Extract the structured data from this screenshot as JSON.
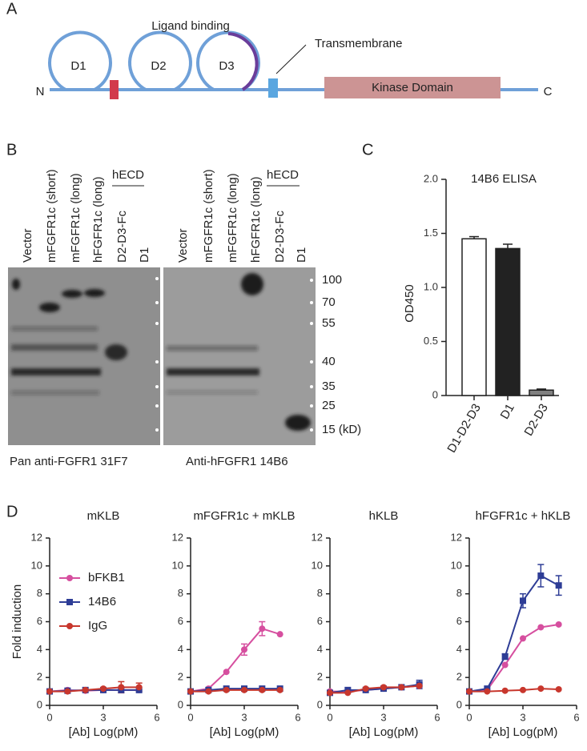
{
  "panel_labels": [
    "A",
    "B",
    "C",
    "D"
  ],
  "panel_a": {
    "domains": [
      "D1",
      "D2",
      "D3"
    ],
    "n_terminus": "N",
    "c_terminus": "C",
    "ligand_label": "Ligand binding",
    "tm_label": "Transmembrane",
    "kinase_label": "Kinase Domain"
  },
  "panel_b": {
    "lanes_left": [
      "Vector",
      "mFGFR1c (short)",
      "mFGFR1c (long)",
      "hFGFR1c (long)",
      "D2-D3-Fc",
      "D1"
    ],
    "lanes_right": [
      "Vector",
      "mFGFR1c (short)",
      "mFGFR1c (long)",
      "hFGFR1c (long)",
      "D2-D3-Fc",
      "D1"
    ],
    "group_label_left": "hECD",
    "group_label_right": "hECD",
    "markers": [
      "100",
      "70",
      "55",
      "40",
      "35",
      "25",
      "15 (kD)"
    ],
    "caption_left": "Pan anti-FGFR1 31F7",
    "caption_right": "Anti-hFGFR1 14B6"
  },
  "chart_data": [
    {
      "type": "bar",
      "title": "14B6 ELISA",
      "ylabel": "OD450",
      "categories": [
        "D1-D2-D3",
        "D1",
        "D2-D3"
      ],
      "values": [
        1.45,
        1.36,
        0.05
      ],
      "errors": [
        0.02,
        0.04,
        0.01
      ],
      "colors": [
        "#ffffff",
        "#222222",
        "#808080"
      ],
      "ylim": [
        0,
        2
      ],
      "yticks": [
        0,
        0.5,
        {
          "value": 1,
          "label": "1.0"
        },
        1.5,
        {
          "value": 2,
          "label": "2.0"
        }
      ]
    },
    {
      "type": "line",
      "title": "mKLB",
      "xlabel": "[Ab] Log(pM)",
      "ylabel": "Fold induction",
      "legend": "upper left",
      "x": [
        0,
        1,
        2,
        3,
        4,
        5
      ],
      "xlim": [
        0,
        6
      ],
      "xticks": [
        0,
        3,
        6
      ],
      "ylim": [
        0,
        12
      ],
      "yticks": [
        0,
        2,
        4,
        6,
        8,
        10,
        12
      ],
      "series": [
        {
          "name": "bFKB1",
          "color": "#d64f9f",
          "marker": "circle",
          "values": [
            1,
            1.1,
            1.05,
            1.1,
            1.1,
            1.1
          ]
        },
        {
          "name": "14B6",
          "color": "#2e3d96",
          "marker": "square",
          "values": [
            1,
            1.05,
            1.1,
            1.1,
            1.1,
            1.1
          ]
        },
        {
          "name": "IgG",
          "color": "#c8372d",
          "marker": "circle",
          "values": [
            1,
            1,
            1.1,
            1.2,
            1.3,
            1.3
          ],
          "errors": [
            0,
            0,
            0,
            0,
            0.4,
            0.3
          ]
        }
      ]
    },
    {
      "type": "line",
      "title": "mFGFR1c + mKLB",
      "xlabel": "[Ab] Log(pM)",
      "x": [
        0,
        1,
        2,
        3,
        4,
        5
      ],
      "xlim": [
        0,
        6
      ],
      "xticks": [
        0,
        3,
        6
      ],
      "ylim": [
        0,
        12
      ],
      "yticks": [
        0,
        2,
        4,
        6,
        8,
        10,
        12
      ],
      "series": [
        {
          "color": "#d64f9f",
          "marker": "circle",
          "values": [
            1,
            1.2,
            2.4,
            4,
            5.5,
            5.1
          ],
          "errors": [
            0,
            0,
            0,
            0.4,
            0.5,
            0
          ]
        },
        {
          "color": "#2e3d96",
          "marker": "square",
          "values": [
            1,
            1.1,
            1.2,
            1.2,
            1.2,
            1.2
          ]
        },
        {
          "color": "#c8372d",
          "marker": "circle",
          "values": [
            1,
            1,
            1.1,
            1.1,
            1.1,
            1.1
          ]
        }
      ]
    },
    {
      "type": "line",
      "title": "hKLB",
      "xlabel": "[Ab] Log(pM)",
      "x": [
        0,
        1,
        2,
        3,
        4,
        5
      ],
      "xlim": [
        0,
        6
      ],
      "xticks": [
        0,
        3,
        6
      ],
      "ylim": [
        0,
        12
      ],
      "yticks": [
        0,
        2,
        4,
        6,
        8,
        10,
        12
      ],
      "series": [
        {
          "color": "#d64f9f",
          "marker": "circle",
          "values": [
            1,
            1,
            1.1,
            1.2,
            1.3,
            1.4
          ]
        },
        {
          "color": "#2e3d96",
          "marker": "square",
          "values": [
            0.9,
            1.1,
            1.1,
            1.2,
            1.3,
            1.5
          ],
          "errors": [
            0,
            0,
            0,
            0,
            0,
            0.3
          ]
        },
        {
          "color": "#c8372d",
          "marker": "circle",
          "values": [
            0.9,
            0.9,
            1.2,
            1.3,
            1.3,
            1.4
          ]
        }
      ]
    },
    {
      "type": "line",
      "title": "hFGFR1c + hKLB",
      "xlabel": "[Ab] Log(pM)",
      "x": [
        0,
        1,
        2,
        3,
        4,
        5
      ],
      "xlim": [
        0,
        6
      ],
      "xticks": [
        0,
        3,
        6
      ],
      "ylim": [
        0,
        12
      ],
      "yticks": [
        0,
        2,
        4,
        6,
        8,
        10,
        12
      ],
      "series": [
        {
          "color": "#d64f9f",
          "marker": "circle",
          "values": [
            1,
            1.1,
            2.9,
            4.8,
            5.6,
            5.8
          ]
        },
        {
          "color": "#2e3d96",
          "marker": "square",
          "values": [
            1,
            1.2,
            3.5,
            7.5,
            9.3,
            8.6
          ],
          "errors": [
            0,
            0,
            0.2,
            0.5,
            0.8,
            0.7
          ]
        },
        {
          "color": "#c8372d",
          "marker": "circle",
          "values": [
            1,
            1,
            1.05,
            1.1,
            1.2,
            1.15
          ]
        }
      ]
    }
  ]
}
